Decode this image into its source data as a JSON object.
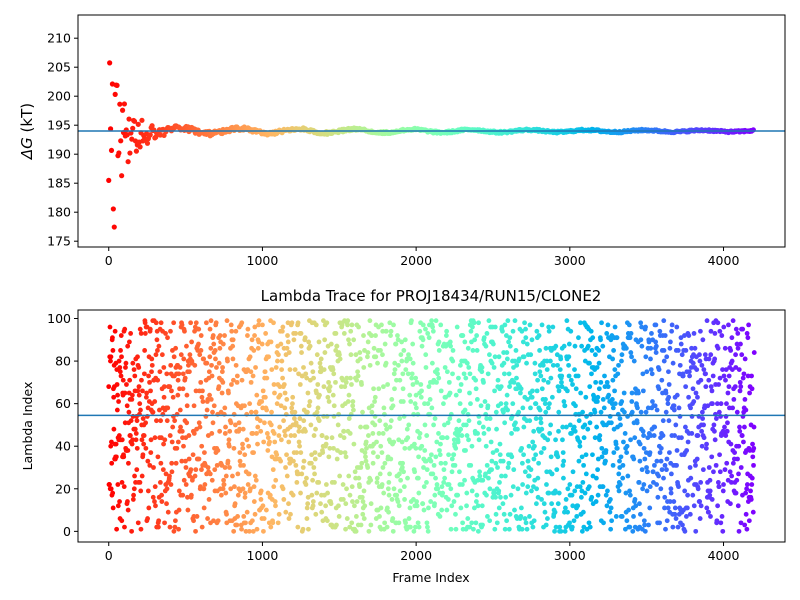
{
  "chart_data": [
    {
      "type": "scatter",
      "title": "",
      "xlabel": "",
      "ylabel": "ΔG (kT)",
      "ylabel_symbol": "ΔG",
      "ylabel_unit": " (kT)",
      "xlim": [
        -200,
        4400
      ],
      "ylim": [
        174,
        214
      ],
      "xticks": [
        0,
        1000,
        2000,
        3000,
        4000
      ],
      "yticks": [
        175,
        180,
        185,
        190,
        195,
        200,
        205,
        210
      ],
      "hline": 194,
      "hline_color": "#1f77b4",
      "colormap": "rainbow",
      "grid": false,
      "legend": "none",
      "convergence": {
        "x_max": 4200,
        "mean": 194.0
      }
    },
    {
      "type": "scatter",
      "title": "Lambda Trace for PROJ18434/RUN15/CLONE2",
      "xlabel": "Frame Index",
      "ylabel": "Lambda Index",
      "xlim": [
        -200,
        4400
      ],
      "ylim": [
        -5,
        104
      ],
      "xticks": [
        0,
        1000,
        2000,
        3000,
        4000
      ],
      "yticks": [
        0,
        20,
        40,
        60,
        80,
        100
      ],
      "hline": 54.5,
      "hline_color": "#1f77b4",
      "colormap": "rainbow",
      "grid": false,
      "legend": "none",
      "points": {
        "x_max": 4200,
        "count": 4200,
        "y_min": 0,
        "y_max": 99
      }
    }
  ]
}
